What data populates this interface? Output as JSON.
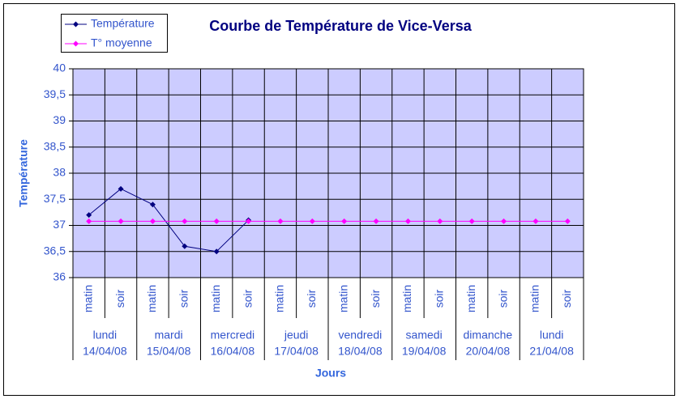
{
  "chart_data": {
    "type": "line",
    "title": "Courbe de Température de Vice-Versa",
    "x_label": "Jours",
    "y_label": "Température",
    "categories": [
      "matin",
      "soir",
      "matin",
      "soir",
      "matin",
      "soir",
      "matin",
      "soir",
      "matin",
      "soir",
      "matin",
      "soir",
      "matin",
      "soir",
      "matin",
      "soir"
    ],
    "groups": [
      {
        "day": "lundi",
        "date": "14/04/08"
      },
      {
        "day": "mardi",
        "date": "15/04/08"
      },
      {
        "day": "mercredi",
        "date": "16/04/08"
      },
      {
        "day": "jeudi",
        "date": "17/04/08"
      },
      {
        "day": "vendredi",
        "date": "18/04/08"
      },
      {
        "day": "samedi",
        "date": "19/04/08"
      },
      {
        "day": "dimanche",
        "date": "20/04/08"
      },
      {
        "day": "lundi",
        "date": "21/04/08"
      }
    ],
    "series": [
      {
        "name": "Température",
        "color": "#000080",
        "values": [
          37.2,
          37.7,
          37.4,
          36.6,
          36.5,
          37.1,
          null,
          null,
          null,
          null,
          null,
          null,
          null,
          null,
          null,
          null
        ]
      },
      {
        "name": "T° moyenne",
        "color": "#ff00ff",
        "values": [
          37.08,
          37.08,
          37.08,
          37.08,
          37.08,
          37.08,
          37.08,
          37.08,
          37.08,
          37.08,
          37.08,
          37.08,
          37.08,
          37.08,
          37.08,
          37.08
        ]
      }
    ],
    "ylim": [
      36,
      40
    ],
    "yticks": [
      36,
      {
        "value": 36.5,
        "label": "36,5"
      },
      37,
      {
        "value": 37.5,
        "label": "37,5"
      },
      38,
      {
        "value": 38.5,
        "label": "38,5"
      },
      39,
      {
        "value": 39.5,
        "label": "39,5"
      },
      40
    ],
    "grid": true,
    "plot_background": "#ccccff",
    "legend": "top-left"
  }
}
